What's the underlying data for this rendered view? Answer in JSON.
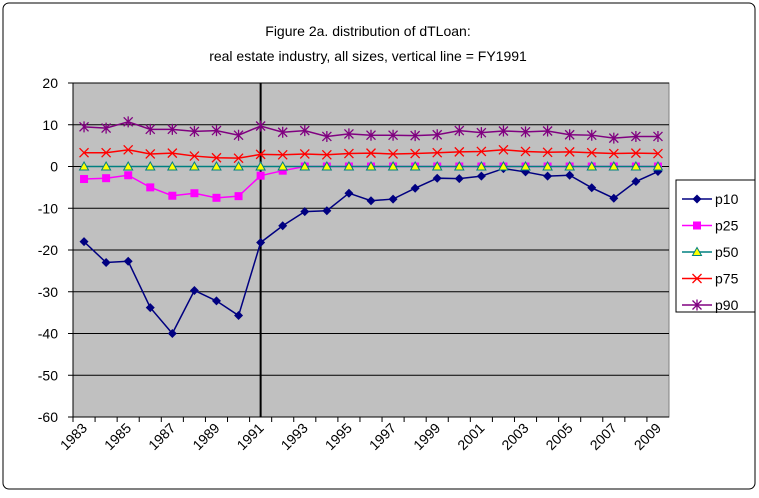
{
  "chart_data": {
    "type": "line",
    "title": [
      "Figure 2a. distribution of dTLoan:",
      "real estate industry, all sizes, vertical line = FY1991"
    ],
    "categories": [
      "1983",
      null,
      "1985",
      null,
      "1987",
      null,
      "1989",
      null,
      "1991",
      null,
      "1993",
      null,
      "1995",
      null,
      "1997",
      null,
      "1999",
      null,
      "2001",
      null,
      "2003",
      null,
      "2005",
      null,
      "2007",
      null,
      "2009"
    ],
    "vline": "1991",
    "ylim": [
      -60,
      20
    ],
    "yticks": [
      -60,
      -50,
      -40,
      -30,
      -20,
      -10,
      0,
      10,
      20
    ],
    "grid": true,
    "legend": "right",
    "series": [
      {
        "name": "p10",
        "color": "#000080",
        "marker": "diamond",
        "values": [
          -18,
          -23,
          -22.7,
          -33.8,
          -40,
          -29.7,
          -32.2,
          -35.7,
          -18.2,
          -14.2,
          -10.8,
          -10.6,
          -6.4,
          -8.2,
          -7.8,
          -5.2,
          -2.8,
          -2.9,
          -2.3,
          -0.5,
          -1.3,
          -2.3,
          -2.1,
          -5.1,
          -7.6,
          -3.6,
          -1.2
        ]
      },
      {
        "name": "p25",
        "color": "#ff00ff",
        "marker": "square",
        "values": [
          -3,
          -2.8,
          -2.1,
          -5,
          -7,
          -6.4,
          -7.5,
          -7.1,
          -2.2,
          -1,
          0,
          0,
          0,
          0,
          0,
          0,
          0,
          0,
          0,
          0,
          0,
          0,
          0,
          0,
          0,
          0,
          0
        ]
      },
      {
        "name": "p50",
        "color": "#008080",
        "marker": "triangle",
        "values": [
          0,
          0,
          0,
          0,
          0,
          0,
          0,
          0,
          0,
          0,
          0,
          0,
          0,
          0,
          0,
          0,
          0,
          0,
          0,
          0,
          0,
          0,
          0,
          0,
          0,
          0,
          0
        ]
      },
      {
        "name": "p75",
        "color": "#ff0000",
        "marker": "x",
        "values": [
          3.3,
          3.3,
          4,
          3,
          3.2,
          2.5,
          2.1,
          2,
          2.9,
          2.8,
          3,
          2.8,
          3.1,
          3.2,
          3,
          3.1,
          3.3,
          3.5,
          3.6,
          4,
          3.6,
          3.4,
          3.5,
          3.3,
          3.1,
          3.2,
          3.1
        ]
      },
      {
        "name": "p90",
        "color": "#800080",
        "marker": "star",
        "values": [
          9.5,
          9.2,
          10.7,
          8.9,
          8.9,
          8.4,
          8.6,
          7.5,
          9.7,
          8.2,
          8.6,
          7.2,
          7.8,
          7.5,
          7.5,
          7.4,
          7.6,
          8.6,
          8.1,
          8.5,
          8.3,
          8.5,
          7.6,
          7.5,
          6.8,
          7.2,
          7.2
        ]
      }
    ]
  }
}
